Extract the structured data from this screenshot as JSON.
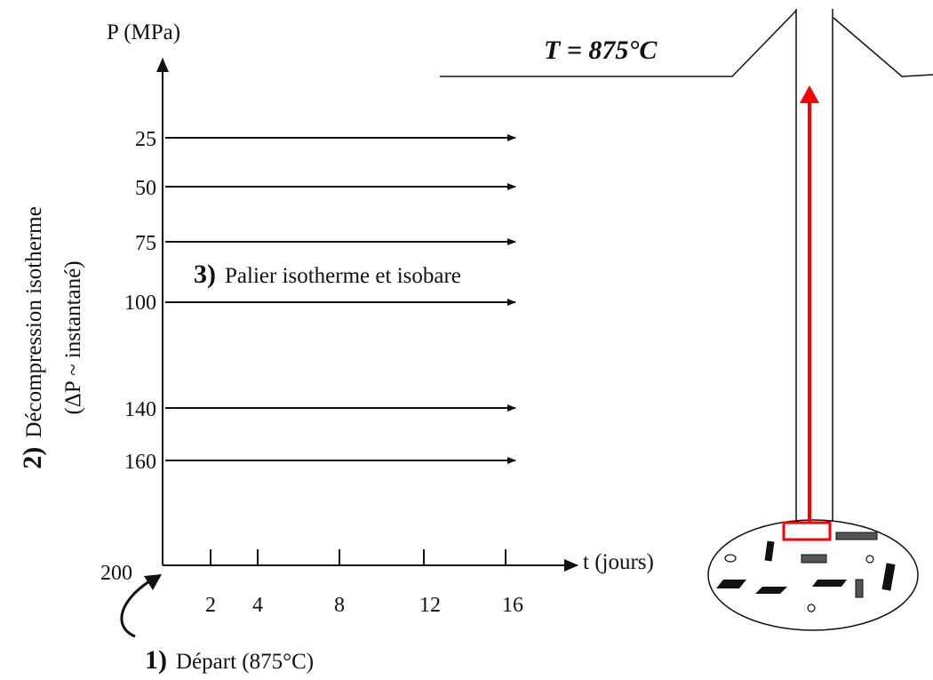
{
  "diagram": {
    "y_axis_label": "P (MPa)",
    "x_axis_label": "t (jours)",
    "origin_label": "200",
    "temperature_label": "T = 875°C",
    "steps": [
      {
        "number": "1)",
        "text": "Départ (875°C)"
      },
      {
        "number": "2)",
        "text": "Décompression isotherme"
      },
      {
        "number": "3)",
        "text": "Palier isotherme et isobare"
      }
    ],
    "step2_subtext": "(ΔP ~ instantané)",
    "crystal_particles": "rectangles and circles",
    "capillary_arrow_color": "#ff0000"
  },
  "chart_data": {
    "type": "line",
    "xlabel": "t (jours)",
    "ylabel": "P (MPa)",
    "x_ticks": [
      "2",
      "4",
      "8",
      "12",
      "16"
    ],
    "y_ticks": [
      "25",
      "50",
      "75",
      "100",
      "140",
      "160"
    ],
    "origin_label": "200",
    "series": [
      {
        "pressure": "25",
        "t_start": 0,
        "t_end": 16
      },
      {
        "pressure": "50",
        "t_start": 0,
        "t_end": 16
      },
      {
        "pressure": "75",
        "t_start": 0,
        "t_end": 16
      },
      {
        "pressure": "100",
        "t_start": 0,
        "t_end": 16
      },
      {
        "pressure": "140",
        "t_start": 0,
        "t_end": 16
      },
      {
        "pressure": "160",
        "t_start": 0,
        "t_end": 16
      }
    ]
  }
}
